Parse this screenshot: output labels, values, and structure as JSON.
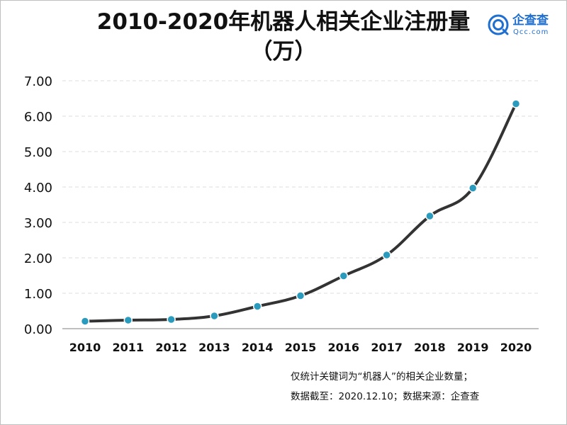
{
  "title": {
    "line1": "2010-2020年机器人相关企业注册量",
    "line2": "（万）"
  },
  "logo": {
    "text": "企查查",
    "sub": "Qcc.com",
    "color": "#1f6fd1"
  },
  "notes": {
    "line1": "仅统计关键词为“机器人”的相关企业数量；",
    "line2": "数据截至：2020.12.10；数据来源：企查查"
  },
  "colors": {
    "line": "#333333",
    "marker": "#2b9bbd",
    "grid": "#dddddd",
    "axis": "#999999"
  },
  "chart_data": {
    "type": "line",
    "x": [
      "2010",
      "2011",
      "2012",
      "2013",
      "2014",
      "2015",
      "2016",
      "2017",
      "2018",
      "2019",
      "2020"
    ],
    "series": [
      {
        "values": [
          0.21,
          0.24,
          0.26,
          0.36,
          0.63,
          0.93,
          1.49,
          2.08,
          3.18,
          3.97,
          6.35
        ]
      }
    ],
    "ylim": [
      0,
      7
    ],
    "yticks": [
      "0.00",
      "1.00",
      "2.00",
      "3.00",
      "4.00",
      "5.00",
      "6.00",
      "7.00"
    ],
    "grid": true,
    "smooth": true
  }
}
